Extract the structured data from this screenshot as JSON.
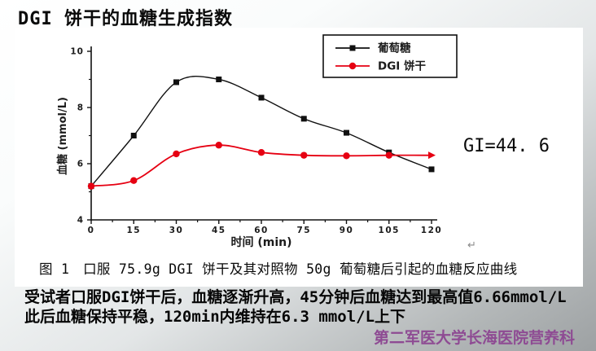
{
  "slide": {
    "title": "DGI 饼干的血糖生成指数"
  },
  "figure": {
    "gi_label": "GI=44. 6",
    "return_mark": "↵",
    "caption": "图 1　口服 75.9g DGI 饼干及其对照物 50g 葡萄糖后引起的血糖反应曲线"
  },
  "body": {
    "line1": "受试者口服DGI饼干后，血糖逐渐升高，45分钟后血糖达到最高值6.66mmol/L",
    "line2": "此后血糖保持平稳，120min内维持在6.3 mmol/L上下"
  },
  "footer": {
    "text": "第二军医大学长海医院营养科",
    "color": "#8e4b93"
  },
  "chart_data": {
    "type": "line",
    "title": "",
    "x": [
      0,
      15,
      30,
      45,
      60,
      75,
      90,
      105,
      120
    ],
    "series": [
      {
        "name": "葡萄糖",
        "color": "#111111",
        "marker": "square",
        "values": [
          5.2,
          7.0,
          8.9,
          9.0,
          8.35,
          7.6,
          7.1,
          6.4,
          5.8
        ]
      },
      {
        "name": "DGI 饼干",
        "color": "#e60012",
        "marker": "circle",
        "end_marker": "triangle-right",
        "values": [
          5.2,
          5.4,
          6.35,
          6.66,
          6.4,
          6.3,
          6.28,
          6.3,
          6.3
        ]
      }
    ],
    "xlabel": "时间 (min)",
    "ylabel": "血糖 (mmol/L)",
    "xlim": [
      0,
      120
    ],
    "ylim": [
      4,
      10
    ],
    "xticks": [
      0,
      15,
      30,
      45,
      60,
      75,
      90,
      105,
      120
    ],
    "yticks": [
      4,
      6,
      8,
      10
    ],
    "yticks_minor": [
      5,
      7,
      9
    ],
    "legend": [
      "葡萄糖",
      "DGI 饼干"
    ],
    "legend_position": "top-right-inside",
    "grid": false
  }
}
